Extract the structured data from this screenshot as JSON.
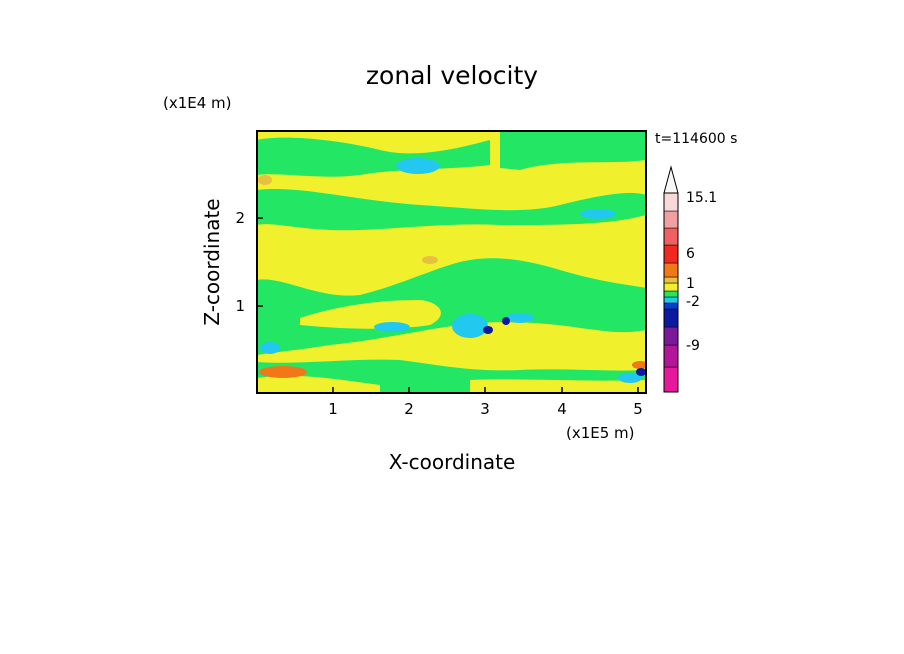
{
  "chart_data": {
    "type": "heatmap",
    "title": "zonal velocity",
    "xlabel": "X-coordinate",
    "ylabel": "Z-coordinate",
    "x_unit": "(x1E5 m)",
    "y_unit": "(x1E4 m)",
    "time_label": "t=114600 s",
    "x_ticks": [
      "1",
      "2",
      "3",
      "4",
      "5"
    ],
    "y_ticks": [
      "1",
      "2"
    ],
    "xlim": [
      0,
      5.13
    ],
    "ylim": [
      0,
      2.97
    ],
    "colorbar": {
      "labels": [
        "15.1",
        "6",
        "1",
        "-2",
        "-9"
      ],
      "colors": [
        "#e8189a",
        "#b4169a",
        "#7a1a9a",
        "#0c1aa0",
        "#0a3cd0",
        "#22c8f0",
        "#22e664",
        "#f0f02c",
        "#e8c040",
        "#f07818",
        "#f0281e",
        "#f06060",
        "#f0a0a0",
        "#f8d8d8"
      ]
    },
    "field_bands": [
      {
        "z0": 0.0,
        "z1": 0.3,
        "dominant": "yellow/green with orange at surface"
      },
      {
        "z0": 0.3,
        "z1": 0.95,
        "dominant": "green"
      },
      {
        "z0": 0.95,
        "z1": 1.55,
        "dominant": "yellow"
      },
      {
        "z0": 1.55,
        "z1": 2.0,
        "dominant": "yellow"
      },
      {
        "z0": 2.0,
        "z1": 2.4,
        "dominant": "green"
      },
      {
        "z0": 2.4,
        "z1": 2.97,
        "dominant": "yellow/green"
      }
    ]
  }
}
